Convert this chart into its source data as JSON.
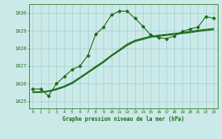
{
  "title": "Graphe pression niveau de la mer (hPa)",
  "bg_color": "#cce9e9",
  "grid_color": "#99cccc",
  "line_color": "#1a6b1a",
  "spine_color": "#2d7a2d",
  "xlim_min": -0.5,
  "xlim_max": 23.5,
  "ylim_min": 1024.6,
  "ylim_max": 1030.5,
  "yticks": [
    1025,
    1026,
    1027,
    1028,
    1029,
    1030
  ],
  "xticks": [
    0,
    1,
    2,
    3,
    4,
    5,
    6,
    7,
    8,
    9,
    10,
    11,
    12,
    13,
    14,
    15,
    16,
    17,
    18,
    19,
    20,
    21,
    22,
    23
  ],
  "series": [
    {
      "x": [
        0,
        1,
        2,
        3,
        4,
        5,
        6,
        7,
        8,
        9,
        10,
        11,
        12,
        13,
        14,
        15,
        16,
        17,
        18,
        19,
        20,
        21,
        22,
        23
      ],
      "y": [
        1025.7,
        1025.7,
        1025.3,
        1026.0,
        1026.4,
        1026.8,
        1027.0,
        1027.6,
        1028.8,
        1029.2,
        1029.9,
        1030.1,
        1030.1,
        1029.7,
        1029.25,
        1028.75,
        1028.6,
        1028.55,
        1028.7,
        1028.95,
        1029.1,
        1029.2,
        1029.8,
        1029.7
      ],
      "marker": "D",
      "markersize": 2.5,
      "lw": 0.9
    },
    {
      "x": [
        0,
        1,
        2,
        3,
        4,
        5,
        6,
        7,
        8,
        9,
        10,
        11,
        12,
        13,
        14,
        15,
        16,
        17,
        18,
        19,
        20,
        21,
        22,
        23
      ],
      "y": [
        1025.5,
        1025.5,
        1025.55,
        1025.65,
        1025.8,
        1026.0,
        1026.3,
        1026.6,
        1026.9,
        1027.2,
        1027.55,
        1027.85,
        1028.15,
        1028.38,
        1028.5,
        1028.62,
        1028.68,
        1028.73,
        1028.78,
        1028.83,
        1028.88,
        1028.95,
        1029.0,
        1029.05
      ],
      "marker": null,
      "lw": 0.8
    },
    {
      "x": [
        0,
        1,
        2,
        3,
        4,
        5,
        6,
        7,
        8,
        9,
        10,
        11,
        12,
        13,
        14,
        15,
        16,
        17,
        18,
        19,
        20,
        21,
        22,
        23
      ],
      "y": [
        1025.52,
        1025.52,
        1025.57,
        1025.68,
        1025.83,
        1026.04,
        1026.33,
        1026.63,
        1026.94,
        1027.24,
        1027.58,
        1027.88,
        1028.2,
        1028.42,
        1028.54,
        1028.65,
        1028.71,
        1028.76,
        1028.81,
        1028.87,
        1028.92,
        1028.99,
        1029.04,
        1029.09
      ],
      "marker": null,
      "lw": 0.8
    },
    {
      "x": [
        0,
        1,
        2,
        3,
        4,
        5,
        6,
        7,
        8,
        9,
        10,
        11,
        12,
        13,
        14,
        15,
        16,
        17,
        18,
        19,
        20,
        21,
        22,
        23
      ],
      "y": [
        1025.55,
        1025.55,
        1025.6,
        1025.72,
        1025.87,
        1026.08,
        1026.37,
        1026.67,
        1026.98,
        1027.28,
        1027.62,
        1027.93,
        1028.25,
        1028.46,
        1028.58,
        1028.69,
        1028.75,
        1028.8,
        1028.85,
        1028.9,
        1028.96,
        1029.03,
        1029.08,
        1029.13
      ],
      "marker": null,
      "lw": 0.8
    }
  ]
}
